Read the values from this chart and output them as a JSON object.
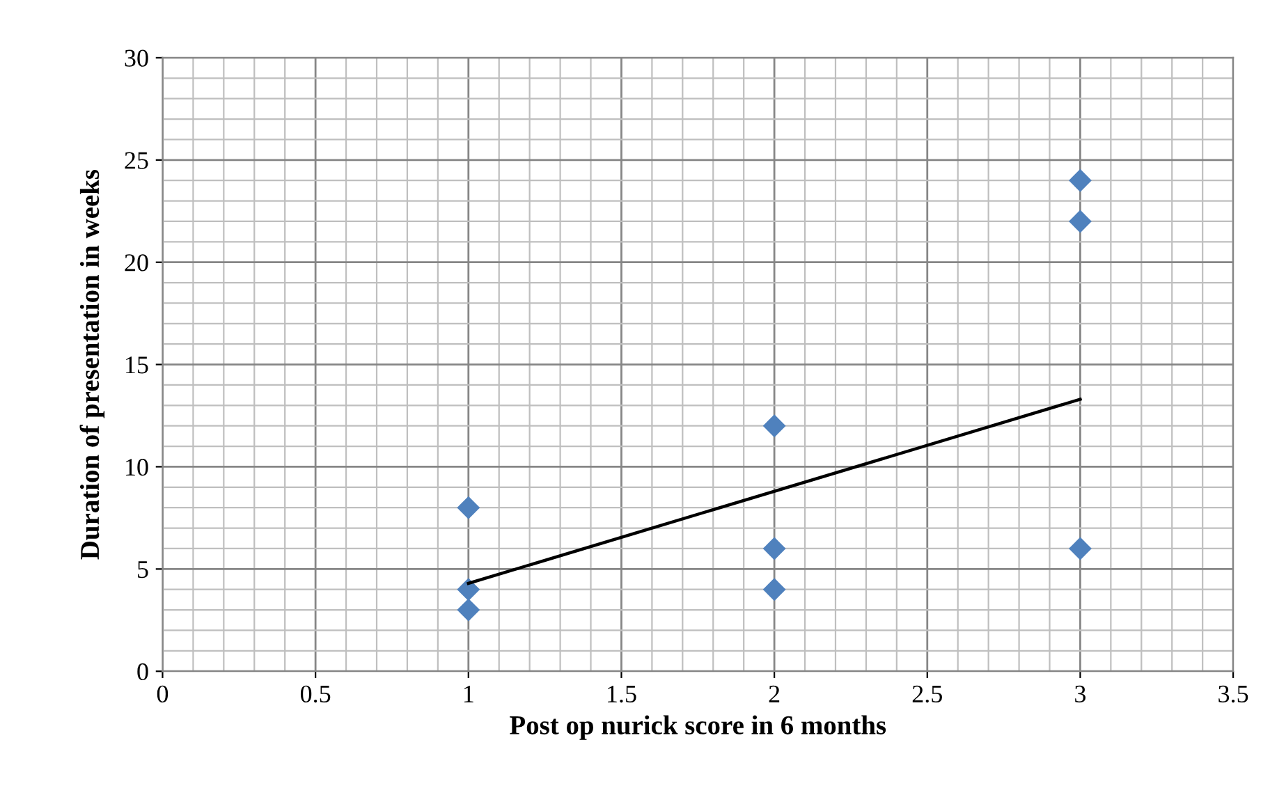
{
  "chart_data": {
    "type": "scatter",
    "xlabel": "Post op nurick score in 6 months",
    "ylabel": "Duration of presentation in weeks",
    "x": [
      1,
      1,
      1,
      2,
      2,
      2,
      3,
      3,
      3
    ],
    "series": [
      {
        "color": "#4f81bd",
        "marker": "diamond",
        "values": [
          8,
          4,
          3,
          12,
          6,
          4,
          24,
          22,
          6
        ]
      },
      {
        "type": "line",
        "color": "#000000",
        "marker": "none",
        "line_style": "solid",
        "x": [
          1,
          3
        ],
        "values": [
          4.3,
          13.3
        ]
      }
    ],
    "xlim": [
      0,
      3.5
    ],
    "xticks": [
      0,
      0.5,
      1,
      1.5,
      2,
      2.5,
      3,
      3.5
    ],
    "ylim": [
      0,
      30
    ],
    "yticks": [
      0,
      5,
      10,
      15,
      20,
      25,
      30
    ],
    "grid": true
  }
}
